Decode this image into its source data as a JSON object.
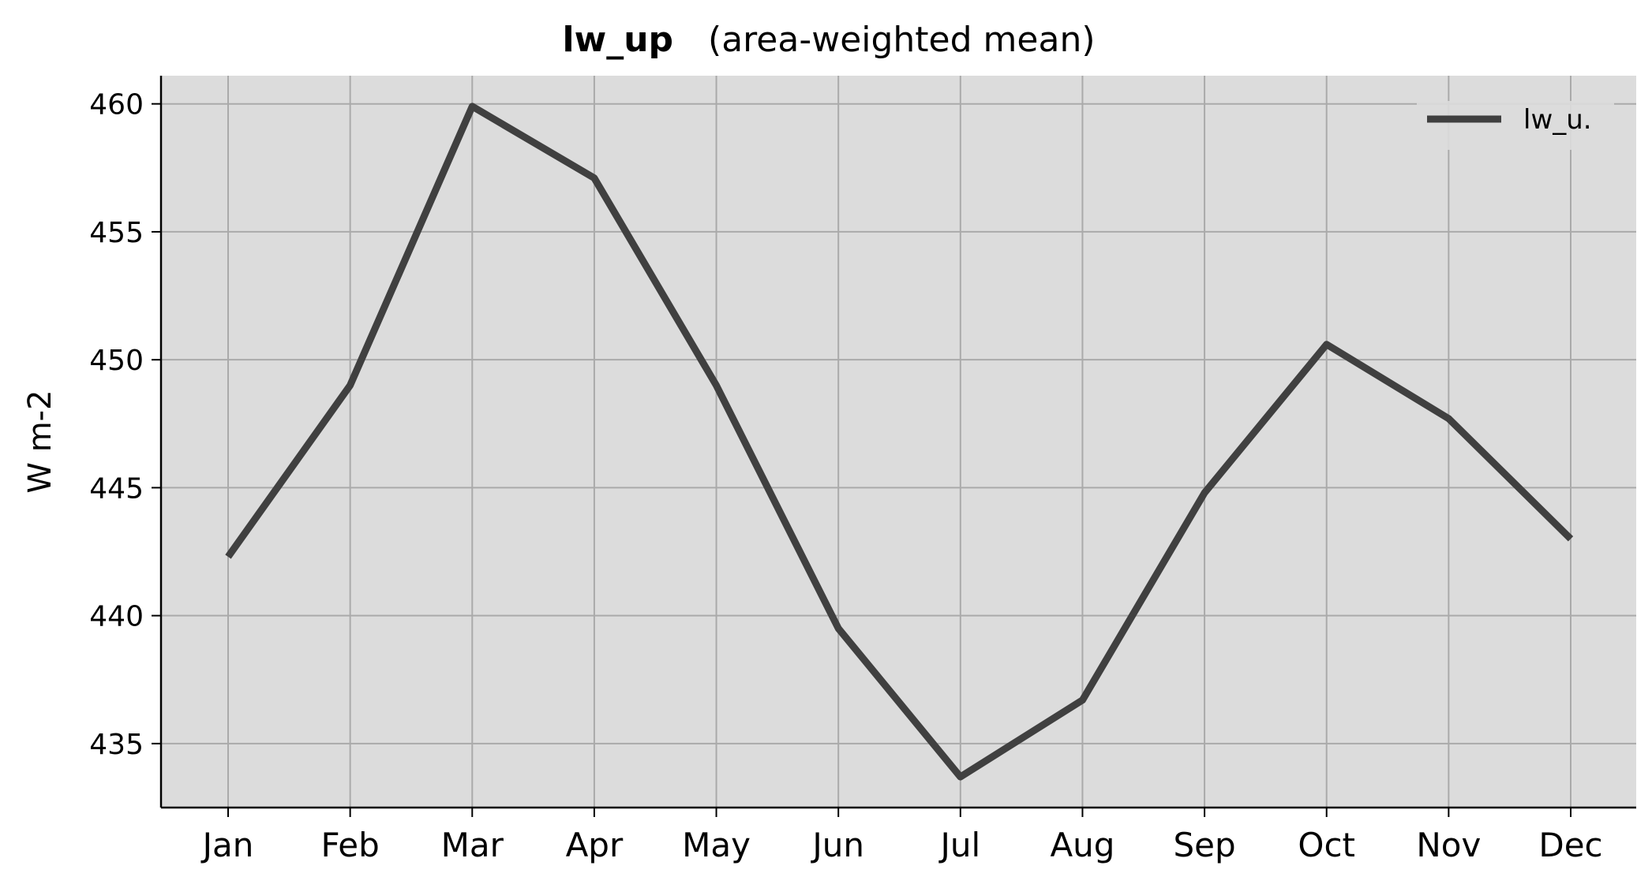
{
  "chart_data": {
    "type": "line",
    "title_var": "lw_up",
    "title_suffix": "(area-weighted mean)",
    "xlabel": "",
    "ylabel": "W m-2",
    "categories": [
      "Jan",
      "Feb",
      "Mar",
      "Apr",
      "May",
      "Jun",
      "Jul",
      "Aug",
      "Sep",
      "Oct",
      "Nov",
      "Dec"
    ],
    "yticks": [
      "435",
      "440",
      "445",
      "450",
      "455",
      "460"
    ],
    "ylim": [
      432.5,
      461.1
    ],
    "grid": true,
    "legend_position": "top-right",
    "series": [
      {
        "name": "lw_u.",
        "color": "#404040",
        "values": [
          442.3,
          449.0,
          459.9,
          457.1,
          449.0,
          439.5,
          433.7,
          436.7,
          444.8,
          450.6,
          447.7,
          443.0
        ]
      }
    ],
    "colors": {
      "plot_bg": "#dcdcdc",
      "grid": "#aaaaaa",
      "axis": "#000000"
    }
  }
}
